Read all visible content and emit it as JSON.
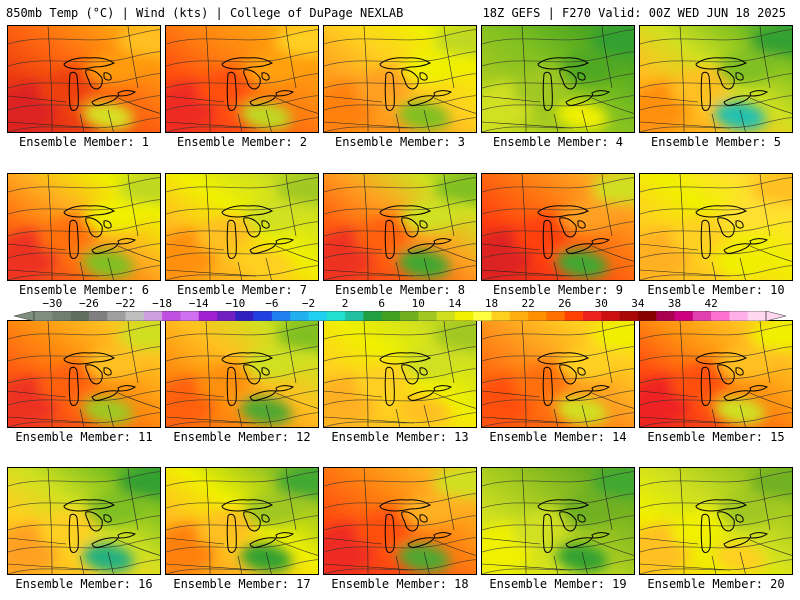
{
  "header": {
    "left": "850mb Temp (°C) | Wind (kts) | College of DuPage NEXLAB",
    "right": "18Z GEFS | F270 Valid: 00Z WED JUN 18 2025"
  },
  "colorbar": {
    "labels": [
      "−30",
      "−26",
      "−22",
      "−18",
      "−14",
      "−10",
      "−6",
      "−2",
      "2",
      "6",
      "10",
      "14",
      "18",
      "22",
      "26",
      "30",
      "34",
      "38",
      "42"
    ],
    "colors": [
      "#7f8f7f",
      "#6f7f6f",
      "#5f6f5f",
      "#7f7f7f",
      "#9f9f9f",
      "#bfbfbf",
      "#cfa0e0",
      "#c050e0",
      "#d070f0",
      "#a020d0",
      "#7020c0",
      "#3020c0",
      "#2040e0",
      "#2080f0",
      "#20b0f0",
      "#20d0f0",
      "#20e0d0",
      "#20c0a0",
      "#20a040",
      "#40a020",
      "#70b020",
      "#a0c820",
      "#d0e020",
      "#f0f000",
      "#ffff40",
      "#ffd020",
      "#ffb010",
      "#ff9000",
      "#ff7000",
      "#ff4000",
      "#ee2020",
      "#cc1010",
      "#aa0808",
      "#880000",
      "#aa0050",
      "#cc0080",
      "#e040b0",
      "#ff70d0",
      "#ffb0e8",
      "#ffd8f0"
    ]
  },
  "members": [
    {
      "label": "Ensemble Member: 1",
      "palette": [
        "#dd2020",
        "#ee4010",
        "#ff6a10",
        "#ff9a10",
        "#ffc020",
        "#d8e020"
      ]
    },
    {
      "label": "Ensemble Member: 2",
      "palette": [
        "#ee2a20",
        "#ff5010",
        "#ff8010",
        "#ffa010",
        "#ffd020",
        "#c0d820"
      ]
    },
    {
      "label": "Ensemble Member: 3",
      "palette": [
        "#ff8010",
        "#ffa020",
        "#ffd020",
        "#f0f000",
        "#c0d820",
        "#80c020"
      ]
    },
    {
      "label": "Ensemble Member: 4",
      "palette": [
        "#d0e020",
        "#a0c820",
        "#80c020",
        "#50a820",
        "#30a030",
        "#f0f000"
      ]
    },
    {
      "label": "Ensemble Member: 5",
      "palette": [
        "#ff9010",
        "#ffc020",
        "#d0e020",
        "#80c020",
        "#30a030",
        "#20c0b0"
      ]
    },
    {
      "label": "Ensemble Member: 6",
      "palette": [
        "#ee3020",
        "#ff7010",
        "#ffb020",
        "#f0f000",
        "#c0d820",
        "#80c020"
      ]
    },
    {
      "label": "Ensemble Member: 7",
      "palette": [
        "#ff9010",
        "#ffc020",
        "#f0f000",
        "#d0e020",
        "#a0c820",
        "#ffd020"
      ]
    },
    {
      "label": "Ensemble Member: 8",
      "palette": [
        "#ee3020",
        "#ff6010",
        "#ffa020",
        "#d0e020",
        "#80c020",
        "#40a830"
      ]
    },
    {
      "label": "Ensemble Member: 9",
      "palette": [
        "#dd2020",
        "#ff4010",
        "#ff7010",
        "#ffa020",
        "#d0e020",
        "#40a830"
      ]
    },
    {
      "label": "Ensemble Member: 10",
      "palette": [
        "#ffb020",
        "#ffd020",
        "#f0f000",
        "#ffe030",
        "#ffc020",
        "#f0f000"
      ]
    },
    {
      "label": "Ensemble Member: 11",
      "palette": [
        "#ee3020",
        "#ff6010",
        "#ff9010",
        "#ffc020",
        "#d0e020",
        "#a0c820"
      ]
    },
    {
      "label": "Ensemble Member: 12",
      "palette": [
        "#ff6010",
        "#ff9010",
        "#ffc020",
        "#d0e020",
        "#80c020",
        "#50a830"
      ]
    },
    {
      "label": "Ensemble Member: 13",
      "palette": [
        "#ffb020",
        "#ffd020",
        "#f0f000",
        "#d0e020",
        "#a0c820",
        "#ffc020"
      ]
    },
    {
      "label": "Ensemble Member: 14",
      "palette": [
        "#ff5010",
        "#ff7010",
        "#ffa020",
        "#ffd020",
        "#f0f000",
        "#d0e020"
      ]
    },
    {
      "label": "Ensemble Member: 15",
      "palette": [
        "#ee2020",
        "#ff5010",
        "#ff9010",
        "#ffc020",
        "#f0f000",
        "#d0e020"
      ]
    },
    {
      "label": "Ensemble Member: 16",
      "palette": [
        "#ffa020",
        "#ffd020",
        "#d0e020",
        "#80c020",
        "#30a030",
        "#20b080"
      ]
    },
    {
      "label": "Ensemble Member: 17",
      "palette": [
        "#ff8010",
        "#ffc020",
        "#f0f000",
        "#a0c820",
        "#40a830",
        "#30a030"
      ]
    },
    {
      "label": "Ensemble Member: 18",
      "palette": [
        "#ee2a20",
        "#ff5010",
        "#ff8010",
        "#ffb020",
        "#d0e020",
        "#50a830"
      ]
    },
    {
      "label": "Ensemble Member: 19",
      "palette": [
        "#f0f000",
        "#d0e020",
        "#a0c820",
        "#70b020",
        "#40a830",
        "#30a030"
      ]
    },
    {
      "label": "Ensemble Member: 20",
      "palette": [
        "#ffc020",
        "#f0f000",
        "#d0e020",
        "#a0c820",
        "#70b020",
        "#ffd020"
      ]
    }
  ]
}
